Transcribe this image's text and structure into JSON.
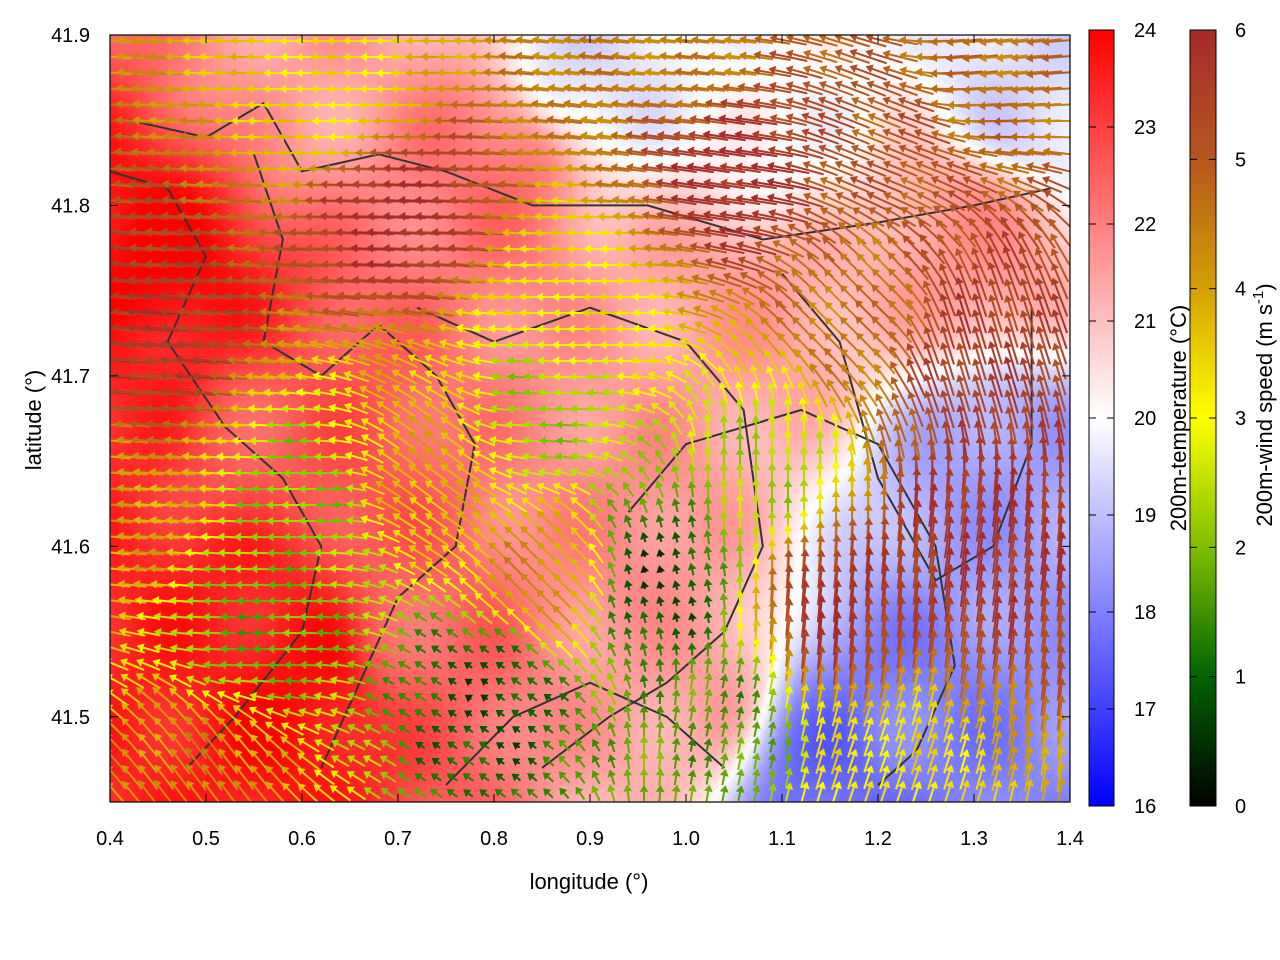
{
  "chart_data": {
    "type": "heatmap",
    "xlabel": "longitude (°)",
    "ylabel": "latitude (°)",
    "xlim": [
      0.4,
      1.4
    ],
    "ylim": [
      41.45,
      41.9
    ],
    "x_ticks": [
      "0.4",
      "0.5",
      "0.6",
      "0.7",
      "0.8",
      "0.9",
      "1.0",
      "1.1",
      "1.2",
      "1.3",
      "1.4"
    ],
    "y_ticks": [
      "41.5",
      "41.6",
      "41.7",
      "41.8",
      "41.9"
    ],
    "temperature_colorbar": {
      "label": "200m-temperature (°C)",
      "range": [
        16,
        24
      ],
      "ticks": [
        "16",
        "17",
        "18",
        "19",
        "20",
        "21",
        "22",
        "23",
        "24"
      ],
      "colors": [
        "#0000ff",
        "#ffffff",
        "#ff0000"
      ]
    },
    "wind_colorbar": {
      "label_main": "200m-wind speed (m s",
      "label_sup": "-1",
      "label_end": ")",
      "range": [
        0,
        6
      ],
      "ticks": [
        "0",
        "1",
        "2",
        "3",
        "4",
        "5",
        "6"
      ],
      "colors": [
        "#000000",
        "#006400",
        "#7fbf00",
        "#ffff00",
        "#d4a000",
        "#b5561e",
        "#a52a2a"
      ]
    },
    "temperature_hotspots": [
      {
        "lon": 0.44,
        "lat": 41.75,
        "temp": 24
      },
      {
        "lon": 0.6,
        "lat": 41.52,
        "temp": 23.8
      },
      {
        "lon": 0.5,
        "lat": 41.57,
        "temp": 23.5
      },
      {
        "lon": 0.42,
        "lat": 41.71,
        "temp": 23.5
      },
      {
        "lon": 0.55,
        "lat": 41.66,
        "temp": 22.6
      },
      {
        "lon": 0.8,
        "lat": 41.82,
        "temp": 22.2
      },
      {
        "lon": 0.72,
        "lat": 41.55,
        "temp": 22.4
      },
      {
        "lon": 0.92,
        "lat": 41.6,
        "temp": 21.8
      },
      {
        "lon": 1.05,
        "lat": 41.73,
        "temp": 21.5
      },
      {
        "lon": 1.3,
        "lat": 41.78,
        "temp": 21.6
      },
      {
        "lon": 1.0,
        "lat": 41.52,
        "temp": 21.5
      },
      {
        "lon": 0.62,
        "lat": 41.88,
        "temp": 21.5
      },
      {
        "lon": 1.16,
        "lat": 41.47,
        "temp": 17.6
      },
      {
        "lon": 1.22,
        "lat": 41.49,
        "temp": 18.0
      },
      {
        "lon": 1.33,
        "lat": 41.64,
        "temp": 18.5
      },
      {
        "lon": 1.36,
        "lat": 41.86,
        "temp": 19.4
      },
      {
        "lon": 0.9,
        "lat": 41.88,
        "temp": 19.5
      },
      {
        "lon": 1.1,
        "lat": 41.86,
        "temp": 20.0
      }
    ],
    "wind_regimes": [
      {
        "lon": 0.7,
        "lat": 41.8,
        "u": -1.0,
        "v": 0.05,
        "speed": 5.9
      },
      {
        "lon": 0.45,
        "lat": 41.72,
        "u": -1.0,
        "v": 0.1,
        "speed": 5.6
      },
      {
        "lon": 0.65,
        "lat": 41.86,
        "u": -1.0,
        "v": 0.0,
        "speed": 3.2
      },
      {
        "lon": 0.9,
        "lat": 41.74,
        "u": -1.0,
        "v": 0.0,
        "speed": 3.2
      },
      {
        "lon": 0.85,
        "lat": 41.68,
        "u": -1.0,
        "v": 0.05,
        "speed": 2.2
      },
      {
        "lon": 0.6,
        "lat": 41.63,
        "u": -1.0,
        "v": 0.0,
        "speed": 2.1
      },
      {
        "lon": 0.55,
        "lat": 41.55,
        "u": -1.0,
        "v": 0.0,
        "speed": 1.8
      },
      {
        "lon": 0.8,
        "lat": 41.52,
        "u": -0.6,
        "v": 0.4,
        "speed": 0.8
      },
      {
        "lon": 0.97,
        "lat": 41.58,
        "u": -0.2,
        "v": 0.8,
        "speed": 0.7
      },
      {
        "lon": 0.5,
        "lat": 41.47,
        "u": -0.6,
        "v": 0.8,
        "speed": 4.2
      },
      {
        "lon": 0.73,
        "lat": 41.65,
        "u": -0.8,
        "v": 0.6,
        "speed": 3.8
      },
      {
        "lon": 0.85,
        "lat": 41.58,
        "u": -0.7,
        "v": 0.7,
        "speed": 4.3
      },
      {
        "lon": 1.15,
        "lat": 41.56,
        "u": 0.1,
        "v": 1.0,
        "speed": 5.8
      },
      {
        "lon": 1.3,
        "lat": 41.6,
        "u": 0.15,
        "v": 1.0,
        "speed": 5.8
      },
      {
        "lon": 1.3,
        "lat": 41.72,
        "u": -0.3,
        "v": 1.0,
        "speed": 5.5
      },
      {
        "lon": 1.18,
        "lat": 41.74,
        "u": -0.7,
        "v": 0.7,
        "speed": 4.5
      },
      {
        "lon": 1.2,
        "lat": 41.84,
        "u": -1.0,
        "v": 0.4,
        "speed": 5.0
      },
      {
        "lon": 1.05,
        "lat": 41.82,
        "u": -1.0,
        "v": 0.15,
        "speed": 5.9
      },
      {
        "lon": 1.0,
        "lat": 41.89,
        "u": -1.0,
        "v": 0.1,
        "speed": 4.4
      },
      {
        "lon": 1.32,
        "lat": 41.89,
        "u": -1.0,
        "v": -0.1,
        "speed": 4.6
      },
      {
        "lon": 1.2,
        "lat": 41.47,
        "u": 0.3,
        "v": 0.9,
        "speed": 3.2
      },
      {
        "lon": 1.05,
        "lat": 41.5,
        "u": 0.2,
        "v": 0.9,
        "speed": 1.6
      },
      {
        "lon": 1.08,
        "lat": 41.64,
        "u": 0.0,
        "v": 1.0,
        "speed": 2.3
      },
      {
        "lon": 0.42,
        "lat": 41.62,
        "u": -1.0,
        "v": 0.1,
        "speed": 4.0
      }
    ]
  }
}
